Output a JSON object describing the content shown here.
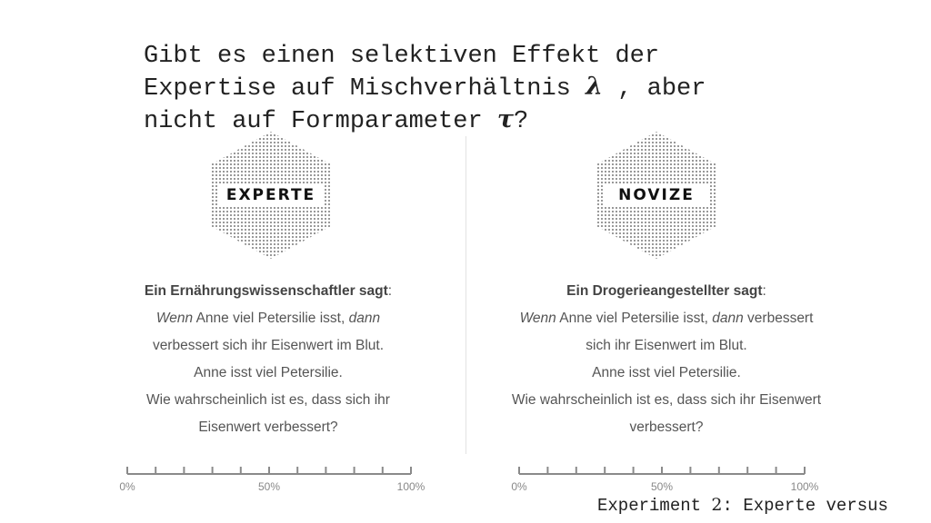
{
  "title": {
    "line1": "Gibt es einen selektiven Effekt der",
    "line2_prefix": "Expertise auf Mischverhältnis",
    "lambda": "λ",
    "line2_suffix": ", aber",
    "line3_prefix": "nicht auf Formparameter",
    "tau": "τ",
    "line3_suffix": "?"
  },
  "left": {
    "badge": "EXPERTE",
    "speaker": "Ein Ernährungswissenschaftler sagt",
    "colon": ":",
    "wenn": "Wenn",
    "text1": " Anne viel Petersilie isst, ",
    "dann": "dann",
    "line2": "verbessert sich ihr Eisenwert im Blut.",
    "line3": "Anne isst viel Petersilie.",
    "line4": "Wie wahrscheinlich ist es, dass sich ihr",
    "line5": "Eisenwert verbessert?"
  },
  "right": {
    "badge": "NOVIZE",
    "speaker": "Ein Drogerieangestellter sagt",
    "colon": ":",
    "wenn": "Wenn",
    "text1": " Anne viel Petersilie isst, ",
    "dann": "dann",
    "text1_tail": " verbessert",
    "line2": "sich ihr Eisenwert im Blut.",
    "line3": "Anne isst viel Petersilie.",
    "line4": "Wie wahrscheinlich ist es, dass sich ihr Eisenwert",
    "line5": "verbessert?"
  },
  "scale": {
    "min_label": "0%",
    "mid_label": "50%",
    "max_label": "100%",
    "tick_count": 11
  },
  "footer": {
    "prefix": "Experiment ",
    "number": "2",
    "suffix": ": Experte versus"
  }
}
